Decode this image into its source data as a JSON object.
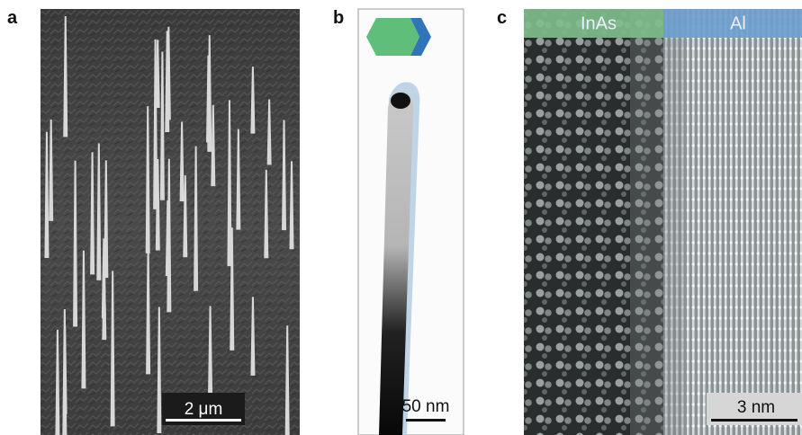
{
  "panels": [
    {
      "label": "a",
      "scale_bar": "2 μm"
    },
    {
      "label": "b",
      "scale_bar": "50 nm"
    },
    {
      "label": "c",
      "scale_bar": "3 nm",
      "regions": [
        "InAs",
        "Al"
      ]
    }
  ]
}
